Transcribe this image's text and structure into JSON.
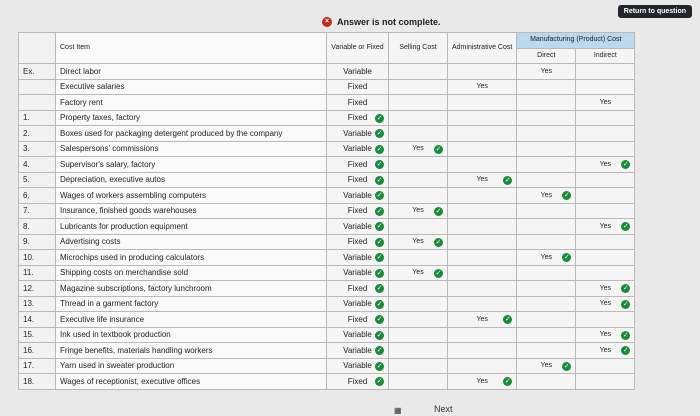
{
  "header": {
    "return_label": "Return to question",
    "status": "Answer is not complete."
  },
  "columns": {
    "cost_item": "Cost Item",
    "variable_fixed": "Variable or Fixed",
    "selling": "Selling Cost",
    "admin": "Administrative Cost",
    "manufacturing": "Manufacturing (Product) Cost",
    "direct": "Direct",
    "indirect": "Indirect"
  },
  "rows": [
    {
      "num": "Ex.",
      "item": "Direct labor",
      "vf": "Variable",
      "sell": "",
      "admin": "",
      "direct": "Yes",
      "indirect": "",
      "vf_ok": false,
      "ok_col": ""
    },
    {
      "num": "",
      "item": "Executive salaries",
      "vf": "Fixed",
      "sell": "",
      "admin": "Yes",
      "direct": "",
      "indirect": "",
      "vf_ok": false,
      "ok_col": ""
    },
    {
      "num": "",
      "item": "Factory rent",
      "vf": "Fixed",
      "sell": "",
      "admin": "",
      "direct": "",
      "indirect": "Yes",
      "vf_ok": false,
      "ok_col": ""
    },
    {
      "num": "1.",
      "item": "Property taxes, factory",
      "vf": "Fixed",
      "sell": "",
      "admin": "",
      "direct": "",
      "indirect": "",
      "vf_ok": true,
      "ok_col": ""
    },
    {
      "num": "2.",
      "item": "Boxes used for packaging detergent produced by the company",
      "vf": "Variable",
      "sell": "",
      "admin": "",
      "direct": "",
      "indirect": "",
      "vf_ok": true,
      "ok_col": ""
    },
    {
      "num": "3.",
      "item": "Salespersons' commissions",
      "vf": "Variable",
      "sell": "Yes",
      "admin": "",
      "direct": "",
      "indirect": "",
      "vf_ok": true,
      "ok_col": "sell"
    },
    {
      "num": "4.",
      "item": "Supervisor's salary, factory",
      "vf": "Fixed",
      "sell": "",
      "admin": "",
      "direct": "",
      "indirect": "Yes",
      "vf_ok": true,
      "ok_col": "indirect"
    },
    {
      "num": "5.",
      "item": "Depreciation, executive autos",
      "vf": "Fixed",
      "sell": "",
      "admin": "Yes",
      "direct": "",
      "indirect": "",
      "vf_ok": true,
      "ok_col": "admin"
    },
    {
      "num": "6.",
      "item": "Wages of workers assembling computers",
      "vf": "Variable",
      "sell": "",
      "admin": "",
      "direct": "Yes",
      "indirect": "",
      "vf_ok": true,
      "ok_col": "direct"
    },
    {
      "num": "7.",
      "item": "Insurance, finished goods warehouses",
      "vf": "Fixed",
      "sell": "Yes",
      "admin": "",
      "direct": "",
      "indirect": "",
      "vf_ok": true,
      "ok_col": "sell"
    },
    {
      "num": "8.",
      "item": "Lubricants for production equipment",
      "vf": "Variable",
      "sell": "",
      "admin": "",
      "direct": "",
      "indirect": "Yes",
      "vf_ok": true,
      "ok_col": "indirect"
    },
    {
      "num": "9.",
      "item": "Advertising costs",
      "vf": "Fixed",
      "sell": "Yes",
      "admin": "",
      "direct": "",
      "indirect": "",
      "vf_ok": true,
      "ok_col": "sell"
    },
    {
      "num": "10.",
      "item": "Microchips used in producing calculators",
      "vf": "Variable",
      "sell": "",
      "admin": "",
      "direct": "Yes",
      "indirect": "",
      "vf_ok": true,
      "ok_col": "direct"
    },
    {
      "num": "11.",
      "item": "Shipping costs on merchandise sold",
      "vf": "Variable",
      "sell": "Yes",
      "admin": "",
      "direct": "",
      "indirect": "",
      "vf_ok": true,
      "ok_col": "sell"
    },
    {
      "num": "12.",
      "item": "Magazine subscriptions, factory lunchroom",
      "vf": "Fixed",
      "sell": "",
      "admin": "",
      "direct": "",
      "indirect": "Yes",
      "vf_ok": true,
      "ok_col": "indirect"
    },
    {
      "num": "13.",
      "item": "Thread in a garment factory",
      "vf": "Variable",
      "sell": "",
      "admin": "",
      "direct": "",
      "indirect": "Yes",
      "vf_ok": true,
      "ok_col": "indirect"
    },
    {
      "num": "14.",
      "item": "Executive life insurance",
      "vf": "Fixed",
      "sell": "",
      "admin": "Yes",
      "direct": "",
      "indirect": "",
      "vf_ok": true,
      "ok_col": "admin"
    },
    {
      "num": "15.",
      "item": "Ink used in textbook production",
      "vf": "Variable",
      "sell": "",
      "admin": "",
      "direct": "",
      "indirect": "Yes",
      "vf_ok": true,
      "ok_col": "indirect"
    },
    {
      "num": "16.",
      "item": "Fringe benefits, materials handling workers",
      "vf": "Variable",
      "sell": "",
      "admin": "",
      "direct": "",
      "indirect": "Yes",
      "vf_ok": true,
      "ok_col": "indirect"
    },
    {
      "num": "17.",
      "item": "Yarn used in sweater production",
      "vf": "Variable",
      "sell": "",
      "admin": "",
      "direct": "Yes",
      "indirect": "",
      "vf_ok": true,
      "ok_col": "direct"
    },
    {
      "num": "18.",
      "item": "Wages of receptionist, executive offices",
      "vf": "Fixed",
      "sell": "",
      "admin": "Yes",
      "direct": "",
      "indirect": "",
      "vf_ok": true,
      "ok_col": "admin"
    }
  ],
  "footer": {
    "next": "Next"
  }
}
